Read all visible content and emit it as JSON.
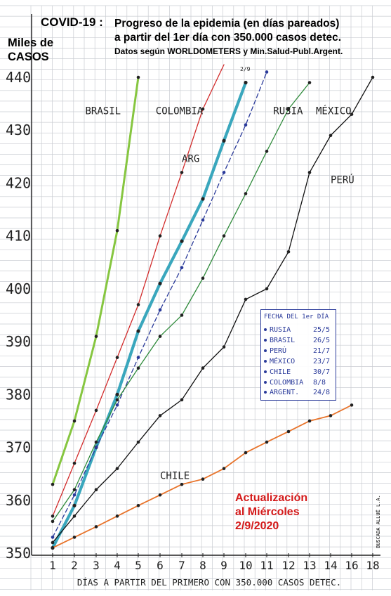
{
  "header": {
    "title": "COVID-19 :",
    "line1": "Progreso de la epidemia (en días pareados)",
    "line2": "a partir del 1er día con 350.000 casos detec.",
    "line3": "Datos según WORLDOMETERS y Min.Salud-Publ.Argent."
  },
  "update": {
    "line1": "Actualización",
    "line2": "al Miércoles",
    "line3": "2/9/2020"
  },
  "signature": "BUSCADA ALLUÉ L.A.",
  "legend": {
    "header": "FECHA DEL 1er DÍA",
    "rows": [
      {
        "country": "RUSIA",
        "date": "25/5"
      },
      {
        "country": "BRASIL",
        "date": "26/5"
      },
      {
        "country": "PERÚ",
        "date": "21/7"
      },
      {
        "country": "MÉXICO",
        "date": "23/7"
      },
      {
        "country": "CHILE",
        "date": "30/7"
      },
      {
        "country": "COLOMBIA",
        "date": "8/8"
      },
      {
        "country": "ARGENT.",
        "date": "24/8"
      }
    ]
  },
  "chart_data": {
    "type": "line",
    "ylabel": "Miles de\nCASOS",
    "xlabel": "DÍAS A PARTIR DEL PRIMERO CON 350.000 CASOS DETEC.",
    "xlim": [
      1,
      18
    ],
    "ylim": [
      350,
      440
    ],
    "x_ticks": [
      1,
      2,
      3,
      4,
      5,
      6,
      7,
      8,
      9,
      10,
      11,
      12,
      13,
      14,
      16,
      18
    ],
    "x_tick_labels": [
      "1",
      "2",
      "3",
      "4",
      "5",
      "6",
      "7",
      "8",
      "9",
      "10",
      "11",
      "12",
      "13",
      "14",
      "16",
      "18"
    ],
    "y_ticks": [
      350,
      360,
      370,
      380,
      390,
      400,
      410,
      420,
      430,
      440
    ],
    "grid": true,
    "annotations": [
      "2/9"
    ],
    "series": [
      {
        "name": "BRASIL",
        "color": "#86c640",
        "x": [
          1,
          2,
          3,
          4,
          5
        ],
        "y": [
          363,
          375,
          391,
          411,
          440
        ]
      },
      {
        "name": "COLOMBIA",
        "color": "#d22b2b",
        "x": [
          1,
          2,
          3,
          4,
          5,
          6,
          7,
          8,
          9
        ],
        "y": [
          357,
          367,
          377,
          387,
          397,
          410,
          422,
          434,
          447
        ]
      },
      {
        "name": "ARG",
        "color": "#3aa7bd",
        "x": [
          1,
          2,
          3,
          4,
          5,
          6,
          7,
          8,
          9,
          10
        ],
        "y": [
          351,
          359,
          370,
          380,
          392,
          401,
          409,
          417,
          428,
          439
        ]
      },
      {
        "name": "RUSIA",
        "color": "#2a3a9a",
        "dashed": true,
        "x": [
          1,
          2,
          3,
          4,
          5,
          6,
          7,
          8,
          9,
          10,
          11
        ],
        "y": [
          353,
          361,
          370,
          378,
          387,
          396,
          404,
          413,
          422,
          431,
          441
        ]
      },
      {
        "name": "MÉXICO",
        "color": "#2e8a3a",
        "x": [
          1,
          2,
          3,
          4,
          5,
          6,
          7,
          8,
          9,
          10,
          11,
          12,
          13
        ],
        "y": [
          356,
          362,
          371,
          379,
          385,
          391,
          395,
          402,
          410,
          418,
          426,
          434,
          439
        ]
      },
      {
        "name": "PERÚ",
        "color": "#111111",
        "x": [
          1,
          2,
          3,
          4,
          5,
          6,
          7,
          8,
          9,
          10,
          11,
          12,
          13,
          14,
          16,
          18
        ],
        "y": [
          352,
          357,
          362,
          366,
          371,
          376,
          379,
          385,
          389,
          398,
          400,
          407,
          422,
          429,
          433,
          440
        ]
      },
      {
        "name": "CHILE",
        "color": "#e8732a",
        "x": [
          1,
          2,
          3,
          4,
          5,
          6,
          7,
          8,
          9,
          10,
          11,
          12,
          13,
          14,
          16
        ],
        "y": [
          351,
          353,
          355,
          357,
          359,
          361,
          363,
          364,
          366,
          369,
          371,
          373,
          375,
          376,
          378
        ]
      }
    ],
    "series_labels": [
      {
        "text": "BRASIL",
        "x": 2.5,
        "y": 433
      },
      {
        "text": "COLOMBIA",
        "x": 5.8,
        "y": 433
      },
      {
        "text": "ARG",
        "x": 7.0,
        "y": 424
      },
      {
        "text": "RUSIA",
        "x": 11.3,
        "y": 433
      },
      {
        "text": "MÉXICO",
        "x": 13.3,
        "y": 433
      },
      {
        "text": "PERÚ",
        "x": 14.0,
        "y": 420
      },
      {
        "text": "CHILE",
        "x": 6.0,
        "y": 364
      }
    ]
  }
}
